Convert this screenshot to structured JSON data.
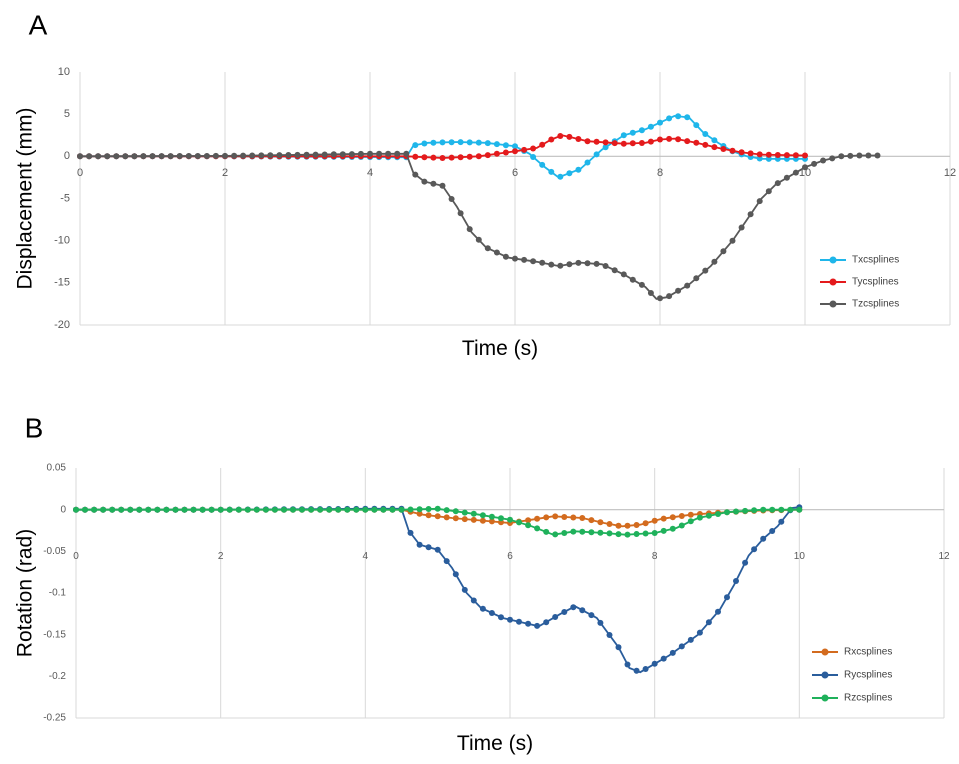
{
  "chart_data": [
    {
      "panel_label": "A",
      "type": "line",
      "title": "",
      "xlabel": "Time (s)",
      "ylabel": "Displacement (mm)",
      "xlim": [
        0,
        12
      ],
      "ylim": [
        -20,
        10
      ],
      "xticks": [
        "0",
        "2",
        "4",
        "6",
        "8",
        "10",
        "12"
      ],
      "yticks": [
        "10",
        "5",
        "0",
        "-5",
        "-10",
        "-15",
        "-20"
      ],
      "grid": true,
      "legend": "right",
      "series": [
        {
          "name": "Txcsplines",
          "color": "#1fb6ea",
          "points": [
            [
              0,
              0
            ],
            [
              2,
              0
            ],
            [
              4.3,
              -0.1
            ],
            [
              4.5,
              -0.1
            ],
            [
              4.6,
              1.3
            ],
            [
              4.8,
              1.6
            ],
            [
              5.2,
              1.7
            ],
            [
              5.6,
              1.6
            ],
            [
              6.0,
              1.2
            ],
            [
              6.2,
              0.3
            ],
            [
              6.4,
              -1.2
            ],
            [
              6.6,
              -2.5
            ],
            [
              6.9,
              -1.5
            ],
            [
              7.2,
              0.8
            ],
            [
              7.5,
              2.5
            ],
            [
              7.8,
              3.2
            ],
            [
              8.0,
              4.0
            ],
            [
              8.2,
              4.8
            ],
            [
              8.4,
              4.6
            ],
            [
              8.6,
              2.8
            ],
            [
              8.8,
              1.6
            ],
            [
              9.0,
              0.6
            ],
            [
              9.2,
              0.0
            ],
            [
              9.4,
              -0.3
            ],
            [
              10.0,
              -0.3
            ]
          ]
        },
        {
          "name": "Tycsplines",
          "color": "#e41a1c",
          "points": [
            [
              0,
              0
            ],
            [
              4.5,
              0
            ],
            [
              5.0,
              -0.2
            ],
            [
              5.5,
              0.0
            ],
            [
              6.0,
              0.6
            ],
            [
              6.3,
              1.0
            ],
            [
              6.5,
              2.0
            ],
            [
              6.65,
              2.5
            ],
            [
              6.8,
              2.2
            ],
            [
              7.0,
              1.8
            ],
            [
              7.5,
              1.5
            ],
            [
              7.8,
              1.6
            ],
            [
              8.0,
              2.0
            ],
            [
              8.2,
              2.1
            ],
            [
              8.5,
              1.6
            ],
            [
              8.8,
              1.0
            ],
            [
              9.1,
              0.5
            ],
            [
              9.4,
              0.2
            ],
            [
              10.0,
              0.1
            ]
          ]
        },
        {
          "name": "Tzcsplines",
          "color": "#595959",
          "points": [
            [
              0,
              0
            ],
            [
              2,
              0.05
            ],
            [
              4.0,
              0.3
            ],
            [
              4.5,
              0.3
            ],
            [
              4.6,
              -2.0
            ],
            [
              4.75,
              -3.0
            ],
            [
              5.0,
              -3.5
            ],
            [
              5.2,
              -6.0
            ],
            [
              5.4,
              -9.0
            ],
            [
              5.6,
              -10.8
            ],
            [
              5.9,
              -12.0
            ],
            [
              6.3,
              -12.5
            ],
            [
              6.6,
              -13.0
            ],
            [
              6.9,
              -12.6
            ],
            [
              7.2,
              -12.8
            ],
            [
              7.5,
              -14.0
            ],
            [
              7.8,
              -15.5
            ],
            [
              7.95,
              -16.9
            ],
            [
              8.1,
              -16.7
            ],
            [
              8.4,
              -15.2
            ],
            [
              8.7,
              -13.0
            ],
            [
              9.0,
              -10.0
            ],
            [
              9.2,
              -7.5
            ],
            [
              9.4,
              -5.0
            ],
            [
              9.6,
              -3.3
            ],
            [
              9.8,
              -2.3
            ],
            [
              10.0,
              -1.3
            ],
            [
              10.25,
              -0.5
            ],
            [
              10.5,
              0.0
            ],
            [
              10.75,
              0.1
            ],
            [
              11.0,
              0.1
            ]
          ]
        }
      ]
    },
    {
      "panel_label": "B",
      "type": "line",
      "title": "",
      "xlabel": "Time (s)",
      "ylabel": "Rotation (rad)",
      "xlim": [
        0,
        12
      ],
      "ylim": [
        -0.25,
        0.05
      ],
      "xticks": [
        "0",
        "2",
        "4",
        "6",
        "8",
        "10",
        "12"
      ],
      "yticks": [
        "0.05",
        "0",
        "-0.05",
        "-0.1",
        "-0.15",
        "-0.2",
        "-0.25"
      ],
      "grid": true,
      "legend": "right",
      "series": [
        {
          "name": "Rxcsplines",
          "color": "#d36b1e",
          "points": [
            [
              0,
              0
            ],
            [
              4.5,
              0
            ],
            [
              4.8,
              -0.006
            ],
            [
              5.2,
              -0.01
            ],
            [
              5.6,
              -0.013
            ],
            [
              6.0,
              -0.016
            ],
            [
              6.3,
              -0.012
            ],
            [
              6.6,
              -0.008
            ],
            [
              7.0,
              -0.01
            ],
            [
              7.3,
              -0.016
            ],
            [
              7.55,
              -0.02
            ],
            [
              7.8,
              -0.018
            ],
            [
              8.1,
              -0.011
            ],
            [
              8.5,
              -0.006
            ],
            [
              9.0,
              -0.003
            ],
            [
              9.5,
              -0.001
            ],
            [
              10.0,
              0.0
            ]
          ]
        },
        {
          "name": "Rycsplines",
          "color": "#2a5d9c",
          "points": [
            [
              0,
              0
            ],
            [
              2,
              0
            ],
            [
              4.0,
              0.001
            ],
            [
              4.5,
              0.001
            ],
            [
              4.6,
              -0.025
            ],
            [
              4.75,
              -0.042
            ],
            [
              5.0,
              -0.048
            ],
            [
              5.2,
              -0.07
            ],
            [
              5.4,
              -0.1
            ],
            [
              5.6,
              -0.118
            ],
            [
              5.9,
              -0.13
            ],
            [
              6.2,
              -0.136
            ],
            [
              6.4,
              -0.14
            ],
            [
              6.7,
              -0.125
            ],
            [
              6.9,
              -0.116
            ],
            [
              7.2,
              -0.13
            ],
            [
              7.5,
              -0.165
            ],
            [
              7.65,
              -0.19
            ],
            [
              7.8,
              -0.195
            ],
            [
              8.0,
              -0.185
            ],
            [
              8.2,
              -0.175
            ],
            [
              8.6,
              -0.15
            ],
            [
              8.9,
              -0.12
            ],
            [
              9.1,
              -0.09
            ],
            [
              9.3,
              -0.055
            ],
            [
              9.5,
              -0.035
            ],
            [
              9.7,
              -0.02
            ],
            [
              9.9,
              0.002
            ],
            [
              10.0,
              0.003
            ]
          ]
        },
        {
          "name": "Rzcsplines",
          "color": "#1fb15b",
          "points": [
            [
              0,
              0
            ],
            [
              4.5,
              0
            ],
            [
              5.0,
              0.001
            ],
            [
              5.5,
              -0.005
            ],
            [
              6.0,
              -0.012
            ],
            [
              6.3,
              -0.02
            ],
            [
              6.6,
              -0.03
            ],
            [
              6.9,
              -0.026
            ],
            [
              7.3,
              -0.028
            ],
            [
              7.6,
              -0.03
            ],
            [
              8.0,
              -0.028
            ],
            [
              8.3,
              -0.022
            ],
            [
              8.6,
              -0.01
            ],
            [
              9.0,
              -0.003
            ],
            [
              9.5,
              0.0
            ],
            [
              10.0,
              0.0
            ]
          ]
        }
      ]
    }
  ]
}
